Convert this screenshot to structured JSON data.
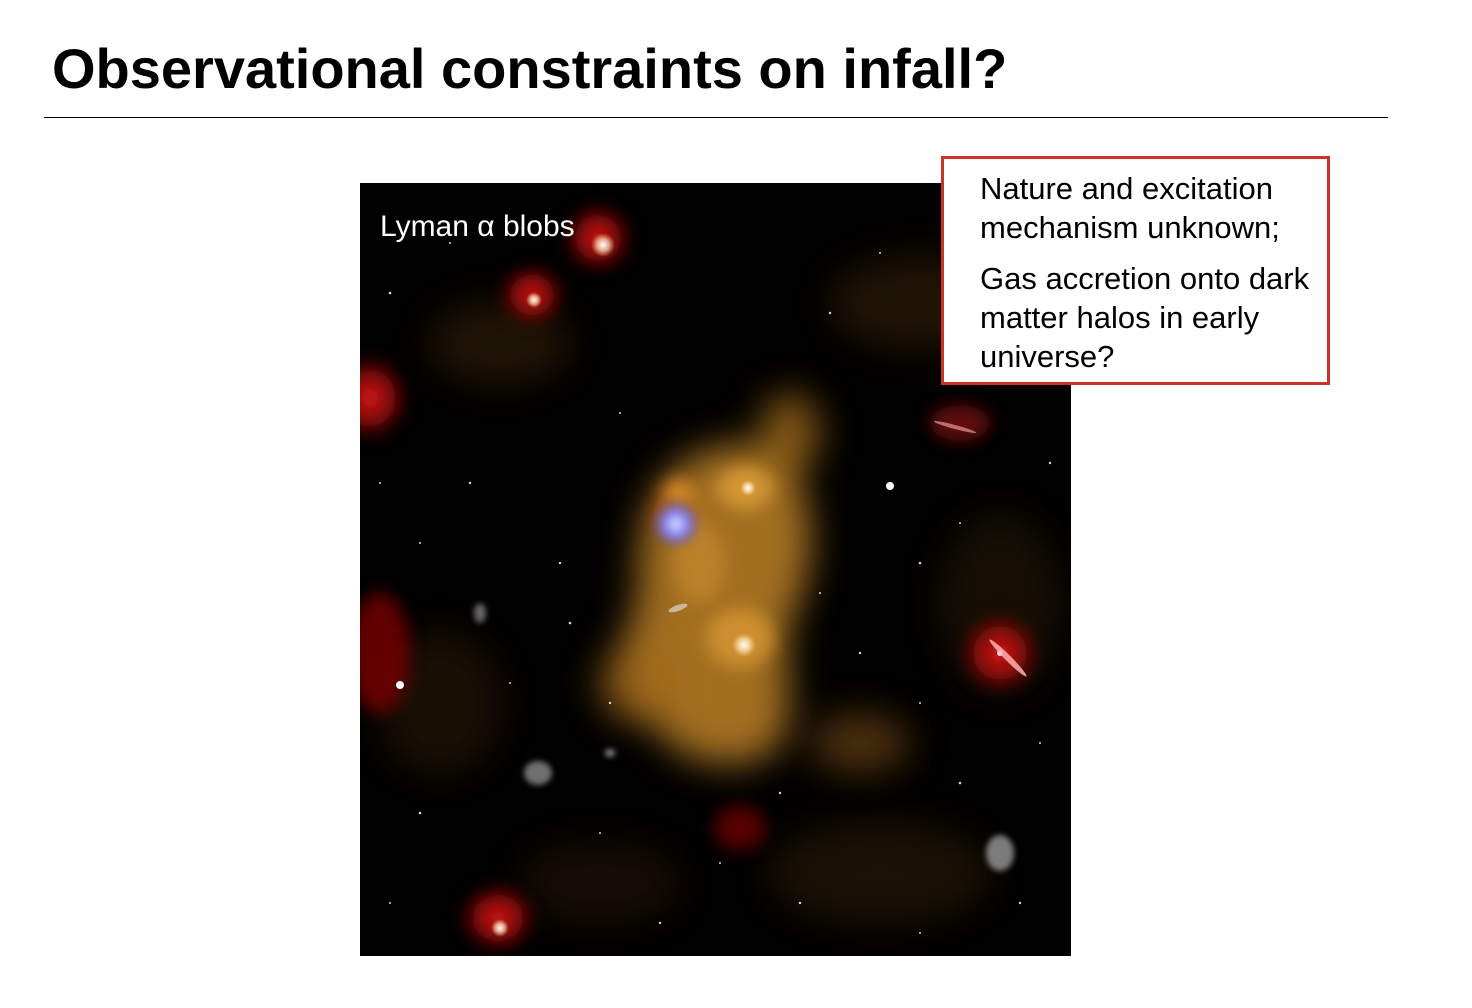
{
  "slide": {
    "title": "Observational constraints on infall?"
  },
  "image": {
    "label": "Lyman α blobs"
  },
  "callout": {
    "paragraphs": [
      "Nature and excitation mechanism unknown;",
      "Gas accretion onto dark matter halos in early universe?"
    ],
    "border_color": "#c8342a"
  },
  "colors": {
    "background": "#ffffff",
    "text": "#000000",
    "image_background": "#020101",
    "lyman_alpha_emission": "#c8902e",
    "galaxy_red": "#b01010",
    "quasar_blue": "#8a8cff"
  }
}
